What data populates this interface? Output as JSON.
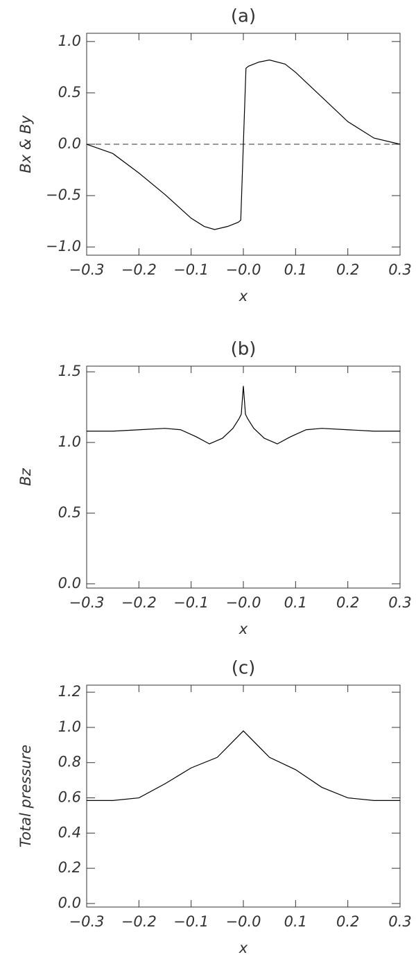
{
  "chart_data": [
    {
      "type": "line",
      "title": "(a)",
      "xlabel": "x",
      "ylabel": "Bx & By",
      "color": "#000000",
      "x": [
        -0.3,
        -0.25,
        -0.2,
        -0.15,
        -0.1,
        -0.075,
        -0.055,
        -0.03,
        -0.01,
        -0.005,
        0.0,
        0.005,
        0.01,
        0.03,
        0.05,
        0.08,
        0.1,
        0.15,
        0.2,
        0.25,
        0.3
      ],
      "values": [
        0.0,
        -0.09,
        -0.28,
        -0.49,
        -0.72,
        -0.8,
        -0.83,
        -0.8,
        -0.76,
        -0.74,
        0.0,
        0.74,
        0.76,
        0.8,
        0.82,
        0.78,
        0.7,
        0.46,
        0.22,
        0.06,
        0.0
      ],
      "reference_line": 0,
      "xlim": [
        -0.3,
        0.3
      ],
      "ylim": [
        -1.08,
        1.08
      ],
      "xticks": [
        {
          "value": -0.3,
          "label": "−0.3"
        },
        {
          "value": -0.2,
          "label": "−0.2"
        },
        {
          "value": -0.1,
          "label": "−0.1"
        },
        {
          "value": 0,
          "label": "−0.0"
        },
        {
          "value": 0.1,
          "label": "0.1"
        },
        {
          "value": 0.2,
          "label": "0.2"
        },
        {
          "value": 0.3,
          "label": "0.3"
        }
      ],
      "yticks": [
        {
          "value": -1,
          "label": "−1.0"
        },
        {
          "value": -0.5,
          "label": "−0.5"
        },
        {
          "value": 0,
          "label": "0.0"
        },
        {
          "value": 0.5,
          "label": "0.5"
        },
        {
          "value": 1,
          "label": "1.0"
        }
      ]
    },
    {
      "type": "line",
      "title": "(b)",
      "xlabel": "x",
      "ylabel": "Bz",
      "color": "#000000",
      "x": [
        -0.3,
        -0.25,
        -0.2,
        -0.15,
        -0.12,
        -0.09,
        -0.065,
        -0.04,
        -0.02,
        -0.008,
        -0.004,
        0.0,
        0.004,
        0.008,
        0.02,
        0.04,
        0.065,
        0.09,
        0.12,
        0.15,
        0.2,
        0.25,
        0.3
      ],
      "values": [
        1.08,
        1.08,
        1.09,
        1.1,
        1.09,
        1.04,
        0.99,
        1.03,
        1.1,
        1.17,
        1.2,
        1.4,
        1.2,
        1.17,
        1.1,
        1.03,
        0.99,
        1.04,
        1.09,
        1.1,
        1.09,
        1.08,
        1.08
      ],
      "xlim": [
        -0.3,
        0.3
      ],
      "ylim": [
        -0.03,
        1.54
      ],
      "xticks": [
        {
          "value": -0.3,
          "label": "−0.3"
        },
        {
          "value": -0.2,
          "label": "−0.2"
        },
        {
          "value": -0.1,
          "label": "−0.1"
        },
        {
          "value": 0,
          "label": "−0.0"
        },
        {
          "value": 0.1,
          "label": "0.1"
        },
        {
          "value": 0.2,
          "label": "0.2"
        },
        {
          "value": 0.3,
          "label": "0.3"
        }
      ],
      "yticks": [
        {
          "value": 0,
          "label": "0.0"
        },
        {
          "value": 0.5,
          "label": "0.5"
        },
        {
          "value": 1,
          "label": "1.0"
        },
        {
          "value": 1.5,
          "label": "1.5"
        }
      ]
    },
    {
      "type": "line",
      "title": "(c)",
      "xlabel": "x",
      "ylabel": "Total pressure",
      "color": "#000000",
      "x": [
        -0.3,
        -0.25,
        -0.2,
        -0.15,
        -0.1,
        -0.05,
        0.0,
        0.05,
        0.1,
        0.15,
        0.2,
        0.25,
        0.3
      ],
      "values": [
        0.585,
        0.585,
        0.6,
        0.68,
        0.77,
        0.83,
        0.98,
        0.83,
        0.76,
        0.66,
        0.6,
        0.585,
        0.585
      ],
      "xlim": [
        -0.3,
        0.3
      ],
      "ylim": [
        -0.02,
        1.24
      ],
      "xticks": [
        {
          "value": -0.3,
          "label": "−0.3"
        },
        {
          "value": -0.2,
          "label": "−0.2"
        },
        {
          "value": -0.1,
          "label": "−0.1"
        },
        {
          "value": 0,
          "label": "−0.0"
        },
        {
          "value": 0.1,
          "label": "0.1"
        },
        {
          "value": 0.2,
          "label": "0.2"
        },
        {
          "value": 0.3,
          "label": "0.3"
        }
      ],
      "yticks": [
        {
          "value": 0,
          "label": "0.0"
        },
        {
          "value": 0.2,
          "label": "0.2"
        },
        {
          "value": 0.4,
          "label": "0.4"
        },
        {
          "value": 0.6,
          "label": "0.6"
        },
        {
          "value": 0.8,
          "label": "0.8"
        },
        {
          "value": 1,
          "label": "1.0"
        },
        {
          "value": 1.2,
          "label": "1.2"
        }
      ]
    }
  ]
}
